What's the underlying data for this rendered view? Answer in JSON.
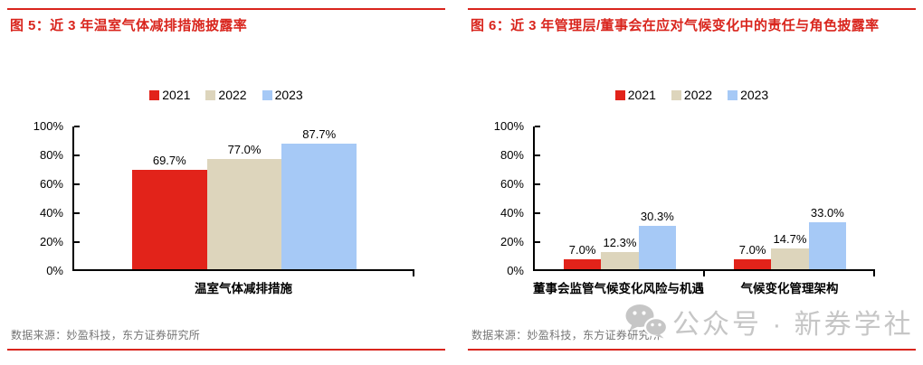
{
  "page": {
    "accent_red": "#d9251d",
    "axis_color": "#000000",
    "source_color": "#757575",
    "watermark_color": "#c6c6c6"
  },
  "watermark": {
    "icon": "wechat-icon",
    "text": "公众号 · 新券学社"
  },
  "charts": [
    {
      "title": "图 5：近 3 年温室气体减排措施披露率",
      "source": "数据来源：妙盈科技，东方证券研究所",
      "chart_data": {
        "type": "bar",
        "categories": [
          "温室气体减排措施"
        ],
        "series": [
          {
            "name": "2021",
            "color": "#e2231a",
            "values": [
              69.7
            ]
          },
          {
            "name": "2022",
            "color": "#ddd5bc",
            "values": [
              77.0
            ]
          },
          {
            "name": "2023",
            "color": "#a6c9f6",
            "values": [
              87.7
            ]
          }
        ],
        "ylim": [
          0,
          100
        ],
        "yticks": [
          0,
          20,
          40,
          60,
          80,
          100
        ],
        "ytick_suffix": "%",
        "value_suffix": "%",
        "value_decimals": 1,
        "grid": false,
        "legend_position": "top-center"
      }
    },
    {
      "title": "图 6：近 3 年管理层/董事会在应对气候变化中的责任与角色披露率",
      "source": "数据来源：妙盈科技，东方证券研究所",
      "chart_data": {
        "type": "bar",
        "categories": [
          "董事会监管气候变化风险与机遇",
          "气候变化管理架构"
        ],
        "series": [
          {
            "name": "2021",
            "color": "#e2231a",
            "values": [
              7.0,
              7.0
            ]
          },
          {
            "name": "2022",
            "color": "#ddd5bc",
            "values": [
              12.3,
              14.7
            ]
          },
          {
            "name": "2023",
            "color": "#a6c9f6",
            "values": [
              30.3,
              33.0
            ]
          }
        ],
        "ylim": [
          0,
          100
        ],
        "yticks": [
          0,
          20,
          40,
          60,
          80,
          100
        ],
        "ytick_suffix": "%",
        "value_suffix": "%",
        "value_decimals": 1,
        "grid": false,
        "legend_position": "top-center"
      }
    }
  ]
}
